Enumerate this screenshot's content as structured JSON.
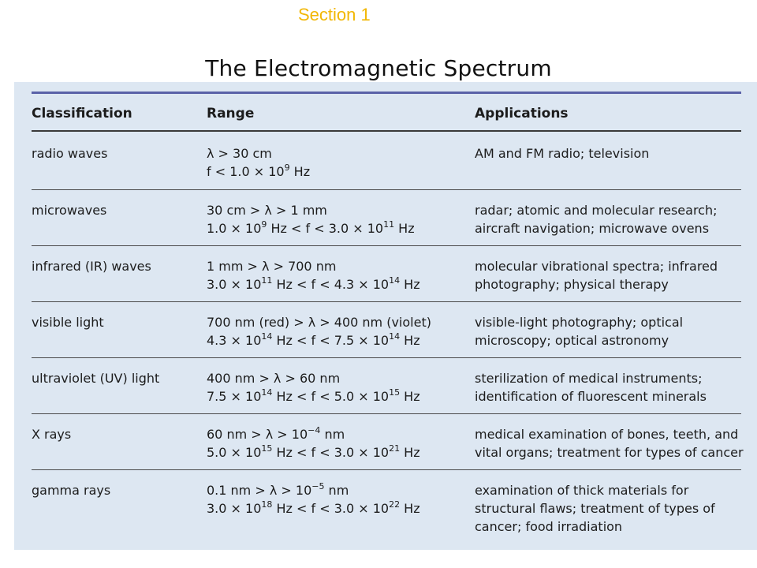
{
  "header": {
    "section": "Section 1",
    "title": "The Electromagnetic Spectrum"
  },
  "table": {
    "columns": [
      "Classification",
      "Range",
      "Applications"
    ],
    "rows": [
      {
        "classification": "radio waves",
        "range": [
          "λ > 30 cm",
          "f < 1.0 × 10^9 Hz"
        ],
        "applications": [
          "AM and FM radio; television"
        ]
      },
      {
        "classification": "microwaves",
        "range": [
          "30 cm > λ > 1 mm",
          "1.0 × 10^9 Hz < f < 3.0 × 10^11 Hz"
        ],
        "applications": [
          "radar; atomic and molecular research;",
          "aircraft navigation; microwave ovens"
        ]
      },
      {
        "classification": "infrared (IR) waves",
        "range": [
          "1 mm > λ > 700 nm",
          "3.0 × 10^11 Hz < f < 4.3 × 10^14 Hz"
        ],
        "applications": [
          "molecular vibrational spectra; infrared",
          "photography; physical therapy"
        ]
      },
      {
        "classification": "visible light",
        "range": [
          "700 nm (red) > λ > 400 nm (violet)",
          "4.3 × 10^14 Hz < f < 7.5 × 10^14 Hz"
        ],
        "applications": [
          "visible-light photography; optical",
          "microscopy; optical astronomy"
        ]
      },
      {
        "classification": "ultraviolet (UV) light",
        "range": [
          "400 nm > λ > 60 nm",
          "7.5 × 10^14 Hz < f < 5.0 × 10^15 Hz"
        ],
        "applications": [
          "sterilization of medical instruments;",
          "identification of fluorescent minerals"
        ]
      },
      {
        "classification": "X rays",
        "range": [
          "60 nm > λ > 10^−4 nm",
          "5.0 × 10^15 Hz < f < 3.0 × 10^21 Hz"
        ],
        "applications": [
          "medical examination of bones, teeth, and",
          "vital organs; treatment for types of cancer"
        ]
      },
      {
        "classification": "gamma rays",
        "range": [
          "0.1 nm > λ > 10^−5 nm",
          "3.0 × 10^18 Hz < f < 3.0 × 10^22 Hz"
        ],
        "applications": [
          "examination of thick materials for",
          "structural flaws; treatment of types of",
          "cancer; food irradiation"
        ]
      }
    ]
  },
  "colors": {
    "section_label": "#f2b705",
    "panel_background": "#dde7f2",
    "top_rule": "#5a62a8"
  }
}
